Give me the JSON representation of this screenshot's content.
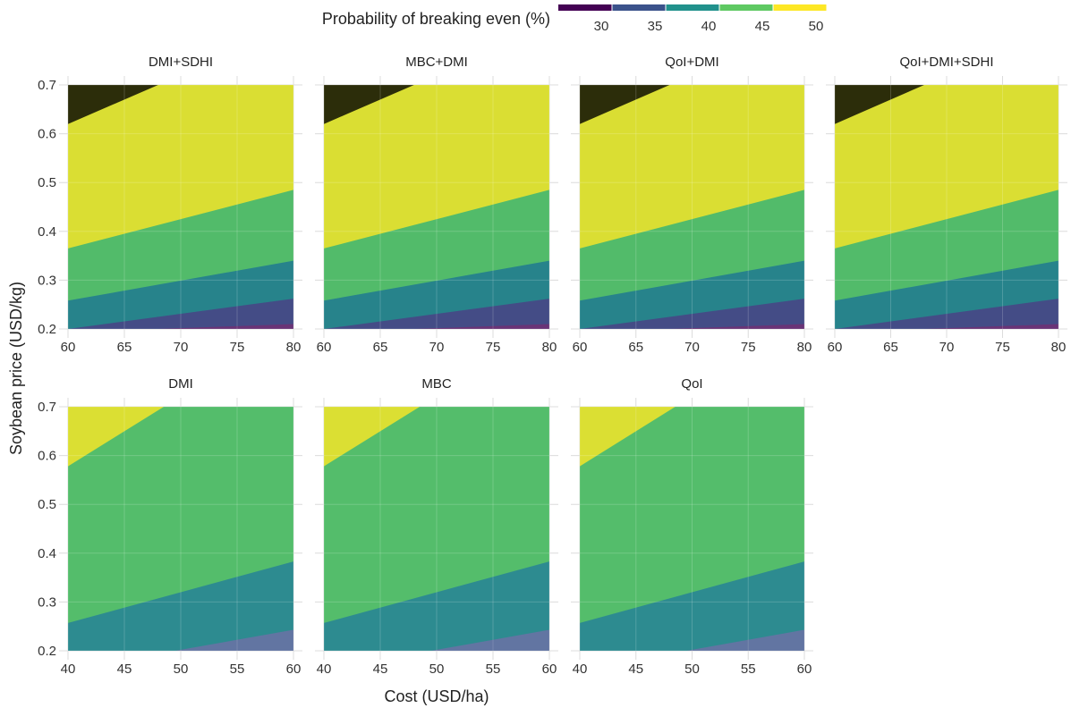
{
  "chart_data": {
    "type": "area",
    "xlabel": "Cost (USD/ha)",
    "ylabel": "Soybean price (USD/kg)",
    "ylim": [
      0.2,
      0.7
    ],
    "y_ticks": [
      0.2,
      0.3,
      0.4,
      0.5,
      0.6,
      0.7
    ],
    "grid": true,
    "legend": {
      "title": "Probability of breaking even (%)",
      "position": "top",
      "breaks": [
        30,
        35,
        40,
        45,
        50
      ],
      "colors": [
        "#440154",
        "#3b528b",
        "#21918c",
        "#5ec962",
        "#fde725"
      ]
    },
    "panels": [
      {
        "name": "DMI+SDHI",
        "xlim": [
          60,
          80
        ],
        "x_ticks": [
          60,
          65,
          70,
          75,
          80
        ],
        "boundaries": [
          {
            "level": 30,
            "x0": 68,
            "y0": 0.2,
            "x1": 80,
            "y1": 0.21
          },
          {
            "level": 35,
            "x0": 60,
            "y0": 0.2,
            "x1": 80,
            "y1": 0.262
          },
          {
            "level": 40,
            "x0": 60,
            "y0": 0.258,
            "x1": 80,
            "y1": 0.34
          },
          {
            "level": 45,
            "x0": 60,
            "y0": 0.365,
            "x1": 80,
            "y1": 0.485
          },
          {
            "level": 50,
            "x0": 60,
            "y0": 0.62,
            "x1": 68,
            "y1": 0.7
          }
        ]
      },
      {
        "name": "MBC+DMI",
        "xlim": [
          60,
          80
        ],
        "x_ticks": [
          60,
          65,
          70,
          75,
          80
        ],
        "boundaries": [
          {
            "level": 30,
            "x0": 68,
            "y0": 0.2,
            "x1": 80,
            "y1": 0.21
          },
          {
            "level": 35,
            "x0": 60,
            "y0": 0.2,
            "x1": 80,
            "y1": 0.262
          },
          {
            "level": 40,
            "x0": 60,
            "y0": 0.258,
            "x1": 80,
            "y1": 0.34
          },
          {
            "level": 45,
            "x0": 60,
            "y0": 0.365,
            "x1": 80,
            "y1": 0.485
          },
          {
            "level": 50,
            "x0": 60,
            "y0": 0.62,
            "x1": 68,
            "y1": 0.7
          }
        ]
      },
      {
        "name": "QoI+DMI",
        "xlim": [
          60,
          80
        ],
        "x_ticks": [
          60,
          65,
          70,
          75,
          80
        ],
        "boundaries": [
          {
            "level": 30,
            "x0": 68,
            "y0": 0.2,
            "x1": 80,
            "y1": 0.21
          },
          {
            "level": 35,
            "x0": 60,
            "y0": 0.2,
            "x1": 80,
            "y1": 0.262
          },
          {
            "level": 40,
            "x0": 60,
            "y0": 0.258,
            "x1": 80,
            "y1": 0.34
          },
          {
            "level": 45,
            "x0": 60,
            "y0": 0.365,
            "x1": 80,
            "y1": 0.485
          },
          {
            "level": 50,
            "x0": 60,
            "y0": 0.62,
            "x1": 68,
            "y1": 0.7
          }
        ]
      },
      {
        "name": "QoI+DMI+SDHI",
        "xlim": [
          60,
          80
        ],
        "x_ticks": [
          60,
          65,
          70,
          75,
          80
        ],
        "boundaries": [
          {
            "level": 30,
            "x0": 68,
            "y0": 0.2,
            "x1": 80,
            "y1": 0.21
          },
          {
            "level": 35,
            "x0": 60,
            "y0": 0.2,
            "x1": 80,
            "y1": 0.262
          },
          {
            "level": 40,
            "x0": 60,
            "y0": 0.258,
            "x1": 80,
            "y1": 0.34
          },
          {
            "level": 45,
            "x0": 60,
            "y0": 0.365,
            "x1": 80,
            "y1": 0.485
          },
          {
            "level": 50,
            "x0": 60,
            "y0": 0.62,
            "x1": 68,
            "y1": 0.7
          }
        ]
      },
      {
        "name": "DMI",
        "xlim": [
          40,
          60
        ],
        "x_ticks": [
          40,
          45,
          50,
          55,
          60
        ],
        "boundaries": [
          {
            "level": 35,
            "x0": 49.5,
            "y0": 0.2,
            "x1": 60,
            "y1": 0.243
          },
          {
            "level": 40,
            "x0": 40,
            "y0": 0.257,
            "x1": 60,
            "y1": 0.383
          },
          {
            "level": 45,
            "x0": 40,
            "y0": 0.578,
            "x1": 48.5,
            "y1": 0.7
          }
        ]
      },
      {
        "name": "MBC",
        "xlim": [
          40,
          60
        ],
        "x_ticks": [
          40,
          45,
          50,
          55,
          60
        ],
        "boundaries": [
          {
            "level": 35,
            "x0": 49.5,
            "y0": 0.2,
            "x1": 60,
            "y1": 0.243
          },
          {
            "level": 40,
            "x0": 40,
            "y0": 0.257,
            "x1": 60,
            "y1": 0.383
          },
          {
            "level": 45,
            "x0": 40,
            "y0": 0.578,
            "x1": 48.5,
            "y1": 0.7
          }
        ]
      },
      {
        "name": "QoI",
        "xlim": [
          40,
          60
        ],
        "x_ticks": [
          40,
          45,
          50,
          55,
          60
        ],
        "boundaries": [
          {
            "level": 35,
            "x0": 49.5,
            "y0": 0.2,
            "x1": 60,
            "y1": 0.243
          },
          {
            "level": 40,
            "x0": 40,
            "y0": 0.257,
            "x1": 60,
            "y1": 0.383
          },
          {
            "level": 45,
            "x0": 40,
            "y0": 0.578,
            "x1": 48.5,
            "y1": 0.7
          }
        ]
      }
    ]
  }
}
